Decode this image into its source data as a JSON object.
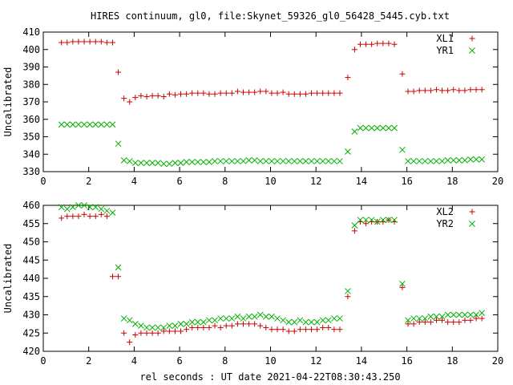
{
  "title": "HIRES continuum, gl0, file:Skynet_59326_gl0_56428_5445.cyb.txt",
  "xlabel": "rel seconds : UT date 2021-04-22T08:30:43.250",
  "colors": {
    "plus": "#cc0000",
    "cross": "#00b000",
    "axis": "#000000"
  },
  "chart_data": [
    {
      "type": "scatter",
      "ylabel": "Uncalibrated",
      "xlim": [
        0,
        20
      ],
      "ylim": [
        330,
        410
      ],
      "x_ticks": [
        0,
        2,
        4,
        6,
        8,
        10,
        12,
        14,
        16,
        18,
        20
      ],
      "y_ticks": [
        330,
        340,
        350,
        360,
        370,
        380,
        390,
        400,
        410
      ],
      "legend_position": "top-right",
      "x": [
        0.8,
        1.05,
        1.3,
        1.55,
        1.8,
        2.05,
        2.3,
        2.55,
        2.8,
        3.05,
        3.3,
        3.55,
        3.8,
        4.05,
        4.3,
        4.55,
        4.8,
        5.05,
        5.3,
        5.55,
        5.8,
        6.05,
        6.3,
        6.55,
        6.8,
        7.05,
        7.3,
        7.55,
        7.8,
        8.05,
        8.3,
        8.55,
        8.8,
        9.05,
        9.3,
        9.55,
        9.8,
        10.05,
        10.3,
        10.55,
        10.8,
        11.05,
        11.3,
        11.55,
        11.8,
        12.05,
        12.3,
        12.55,
        12.8,
        13.05,
        13.4,
        13.7,
        13.95,
        14.2,
        14.45,
        14.7,
        14.95,
        15.2,
        15.45,
        15.8,
        16.05,
        16.3,
        16.55,
        16.8,
        17.05,
        17.3,
        17.55,
        17.8,
        18.05,
        18.3,
        18.55,
        18.8,
        19.05,
        19.3
      ],
      "series": [
        {
          "name": "XL1",
          "marker": "plus",
          "values": [
            404,
            404,
            404.5,
            404.5,
            404.5,
            404.5,
            404.5,
            404.5,
            404,
            404,
            387,
            372,
            370,
            372.5,
            373.5,
            373,
            373.5,
            373.5,
            373,
            374.5,
            374,
            374.5,
            374.5,
            375,
            375,
            375,
            374.5,
            374.5,
            375,
            375,
            375,
            376,
            375.5,
            375.5,
            375.5,
            376,
            376,
            375,
            375,
            375.5,
            374.5,
            374.5,
            374.5,
            374.5,
            375,
            375,
            375,
            375,
            375,
            375,
            384,
            400,
            403,
            403,
            403,
            403.5,
            403.5,
            403.5,
            403,
            386,
            376,
            376,
            376.5,
            376.5,
            376.5,
            377,
            376.5,
            376.5,
            377,
            376.5,
            376.5,
            377,
            377,
            377
          ]
        },
        {
          "name": "YR1",
          "marker": "cross",
          "values": [
            357,
            357,
            357,
            357,
            357,
            357,
            357,
            357,
            357,
            357,
            346,
            336.5,
            336,
            335,
            335,
            335,
            335,
            335,
            334.5,
            334.5,
            335,
            335,
            335.5,
            335.5,
            335.5,
            335.5,
            335.5,
            336,
            336,
            336,
            336,
            336,
            336,
            336.5,
            336.5,
            336,
            336,
            336,
            336,
            336,
            336,
            336,
            336,
            336,
            336,
            336,
            336,
            336,
            336,
            336,
            341.5,
            353,
            355,
            355,
            355,
            355,
            355,
            355,
            355,
            342.5,
            336,
            336,
            336,
            336,
            336,
            336,
            336,
            336.5,
            336.5,
            336.5,
            336.5,
            337,
            337,
            337
          ]
        }
      ]
    },
    {
      "type": "scatter",
      "ylabel": "Uncalibrated",
      "xlim": [
        0,
        20
      ],
      "ylim": [
        420,
        460
      ],
      "x_ticks": [
        0,
        2,
        4,
        6,
        8,
        10,
        12,
        14,
        16,
        18,
        20
      ],
      "y_ticks": [
        420,
        425,
        430,
        435,
        440,
        445,
        450,
        455,
        460
      ],
      "legend_position": "top-right",
      "x": [
        0.8,
        1.05,
        1.3,
        1.55,
        1.8,
        2.05,
        2.3,
        2.55,
        2.8,
        3.05,
        3.3,
        3.55,
        3.8,
        4.05,
        4.3,
        4.55,
        4.8,
        5.05,
        5.3,
        5.55,
        5.8,
        6.05,
        6.3,
        6.55,
        6.8,
        7.05,
        7.3,
        7.55,
        7.8,
        8.05,
        8.3,
        8.55,
        8.8,
        9.05,
        9.3,
        9.55,
        9.8,
        10.05,
        10.3,
        10.55,
        10.8,
        11.05,
        11.3,
        11.55,
        11.8,
        12.05,
        12.3,
        12.55,
        12.8,
        13.05,
        13.4,
        13.7,
        13.95,
        14.2,
        14.45,
        14.7,
        14.95,
        15.2,
        15.45,
        15.8,
        16.05,
        16.3,
        16.55,
        16.8,
        17.05,
        17.3,
        17.55,
        17.8,
        18.05,
        18.3,
        18.55,
        18.8,
        19.05,
        19.3
      ],
      "series": [
        {
          "name": "XL2",
          "marker": "plus",
          "values": [
            456.5,
            457,
            457,
            457,
            457.5,
            457,
            457,
            457.5,
            457,
            440.5,
            440.5,
            425,
            422.5,
            424.5,
            425,
            425,
            425,
            425,
            425.5,
            425.5,
            425.5,
            425.5,
            426,
            426.5,
            426.5,
            426.5,
            426.5,
            427,
            426.5,
            427,
            427,
            427.5,
            427.5,
            427.5,
            427.5,
            427,
            426.5,
            426,
            426,
            426,
            425.5,
            425.5,
            426,
            426,
            426,
            426,
            426.5,
            426.5,
            426,
            426,
            435,
            453,
            455.5,
            455,
            455.5,
            455.5,
            455.5,
            456,
            455.5,
            437.5,
            427.5,
            427.5,
            428,
            428,
            428,
            428.5,
            428.5,
            428,
            428,
            428,
            428.5,
            428.5,
            429,
            429
          ]
        },
        {
          "name": "YR2",
          "marker": "cross",
          "values": [
            459.5,
            459,
            459.5,
            460,
            460,
            459.5,
            459.5,
            459,
            458.5,
            458,
            443,
            429,
            428.5,
            427.5,
            427,
            426.5,
            426.5,
            426.5,
            426.5,
            427,
            427,
            427.5,
            427.5,
            428,
            428,
            428,
            428.5,
            428.5,
            429,
            429,
            429,
            429.5,
            429,
            429.5,
            429.5,
            430,
            429.5,
            429.5,
            429,
            428.5,
            428,
            428,
            428.5,
            428,
            428,
            428,
            428.5,
            428.5,
            429,
            429,
            436.5,
            454.5,
            456,
            456,
            456,
            455.5,
            456,
            456,
            456,
            438.5,
            428.5,
            429,
            429,
            429,
            429.5,
            429.5,
            429.5,
            430,
            430,
            430,
            430,
            430,
            430,
            430.5
          ]
        }
      ]
    }
  ]
}
